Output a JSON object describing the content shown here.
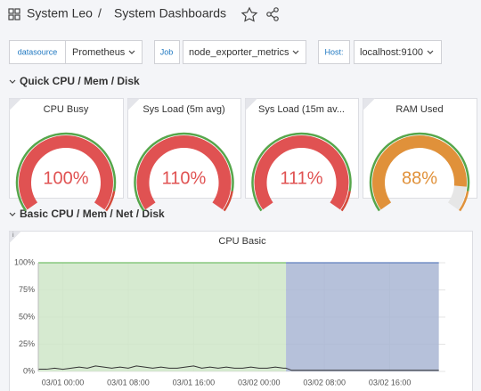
{
  "header": {
    "org": "System Leo",
    "separator": "/",
    "title": "System Dashboards"
  },
  "variables": [
    {
      "label": "datasource",
      "value": "Prometheus"
    },
    {
      "label": "Job",
      "value": "node_exporter_metrics"
    },
    {
      "label": "Host:",
      "value": "localhost:9100"
    }
  ],
  "rows": [
    "Quick CPU / Mem / Disk",
    "Basic CPU / Mem / Net / Disk"
  ],
  "gauges": [
    {
      "title": "CPU Busy",
      "value": "100%"
    },
    {
      "title": "Sys Load (5m avg)",
      "value": "110%"
    },
    {
      "title": "Sys Load (15m av...",
      "value": "111%"
    },
    {
      "title": "RAM Used",
      "value": "88%"
    }
  ],
  "chart_data": {
    "type": "area",
    "title": "CPU Basic",
    "x": [
      -3,
      -2,
      -1,
      0,
      1,
      2,
      3,
      4,
      5,
      6,
      7,
      8,
      9,
      10,
      11,
      12,
      13,
      14,
      15,
      16,
      17,
      18,
      19,
      20,
      21,
      22,
      23,
      24,
      25,
      26,
      27,
      27.3,
      28,
      29,
      30,
      31,
      32,
      33,
      34,
      35,
      36,
      37,
      38,
      39,
      40,
      41,
      42,
      43,
      44,
      45,
      46
    ],
    "xlim": [
      -3,
      46.8
    ],
    "xticks": [
      {
        "value": 0,
        "label": "03/01 00:00"
      },
      {
        "value": 8,
        "label": "03/01 08:00"
      },
      {
        "value": 16,
        "label": "03/01 16:00"
      },
      {
        "value": 24,
        "label": "03/02 00:00"
      },
      {
        "value": 32,
        "label": "03/02 08:00"
      },
      {
        "value": 40,
        "label": "03/02 16:00"
      }
    ],
    "ylim": [
      0,
      100
    ],
    "yticks": [
      {
        "value": 0,
        "label": "0%"
      },
      {
        "value": 25,
        "label": "25%"
      },
      {
        "value": 50,
        "label": "50%"
      },
      {
        "value": 75,
        "label": "75%"
      },
      {
        "value": 100,
        "label": "100%"
      }
    ],
    "grid": true,
    "series": [
      {
        "color": "#73bf69",
        "fill": "#cfe6c8",
        "values": [
          100,
          100,
          100,
          100,
          100,
          100,
          100,
          100,
          100,
          100,
          100,
          100,
          100,
          100,
          100,
          100,
          100,
          100,
          100,
          100,
          100,
          100,
          100,
          100,
          100,
          100,
          100,
          100,
          100,
          100,
          100,
          100,
          null,
          null,
          null,
          null,
          null,
          null,
          null,
          null,
          null,
          null,
          null,
          null,
          null,
          null,
          null,
          null,
          null,
          null,
          null
        ]
      },
      {
        "color": "#5f7fbf",
        "fill": "#a9b6d3",
        "values": [
          null,
          null,
          null,
          null,
          null,
          null,
          null,
          null,
          null,
          null,
          null,
          null,
          null,
          null,
          null,
          null,
          null,
          null,
          null,
          null,
          null,
          null,
          null,
          null,
          null,
          null,
          null,
          null,
          null,
          null,
          null,
          100,
          100,
          100,
          100,
          100,
          100,
          100,
          100,
          100,
          100,
          100,
          100,
          100,
          100,
          100,
          100,
          100,
          100,
          100,
          100
        ]
      },
      {
        "color": "#333333",
        "line": true,
        "values": [
          2,
          2,
          3,
          2,
          3,
          4,
          3,
          5,
          4,
          3,
          4,
          3,
          5,
          4,
          3,
          4,
          3,
          3,
          4,
          5,
          3,
          4,
          3,
          4,
          3,
          3,
          4,
          3,
          3,
          4,
          3,
          3,
          1,
          1,
          1,
          1,
          1,
          1,
          1,
          1,
          1,
          1,
          1,
          1,
          1,
          1,
          1,
          1,
          1,
          1,
          1
        ]
      }
    ]
  }
}
